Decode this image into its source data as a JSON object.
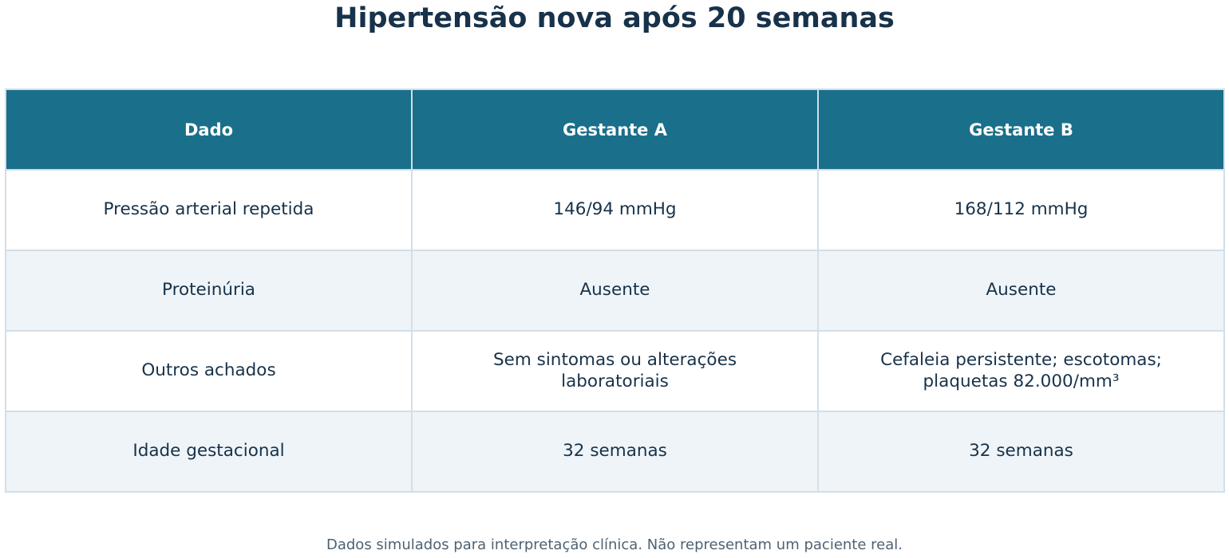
{
  "title": "Hipertensão nova após 20 semanas",
  "table": {
    "headers": [
      "Dado",
      "Gestante A",
      "Gestante B"
    ],
    "rows": [
      [
        "Pressão arterial repetida",
        "146/94 mmHg",
        "168/112 mmHg"
      ],
      [
        "Proteinúria",
        "Ausente",
        "Ausente"
      ],
      [
        "Outros achados",
        "Sem sintomas ou alterações laboratoriais",
        "Cefaleia persistente; escotomas; plaquetas 82.000/mm³"
      ],
      [
        "Idade gestacional",
        "32 semanas",
        "32 semanas"
      ]
    ]
  },
  "footnote": "Dados simulados para interpretação clínica. Não representam um paciente real.",
  "colors": {
    "header_bg": "#1a6f8a",
    "title_text": "#17324a",
    "alt_row_bg": "#eef4f8",
    "border": "#d3dfe8"
  }
}
